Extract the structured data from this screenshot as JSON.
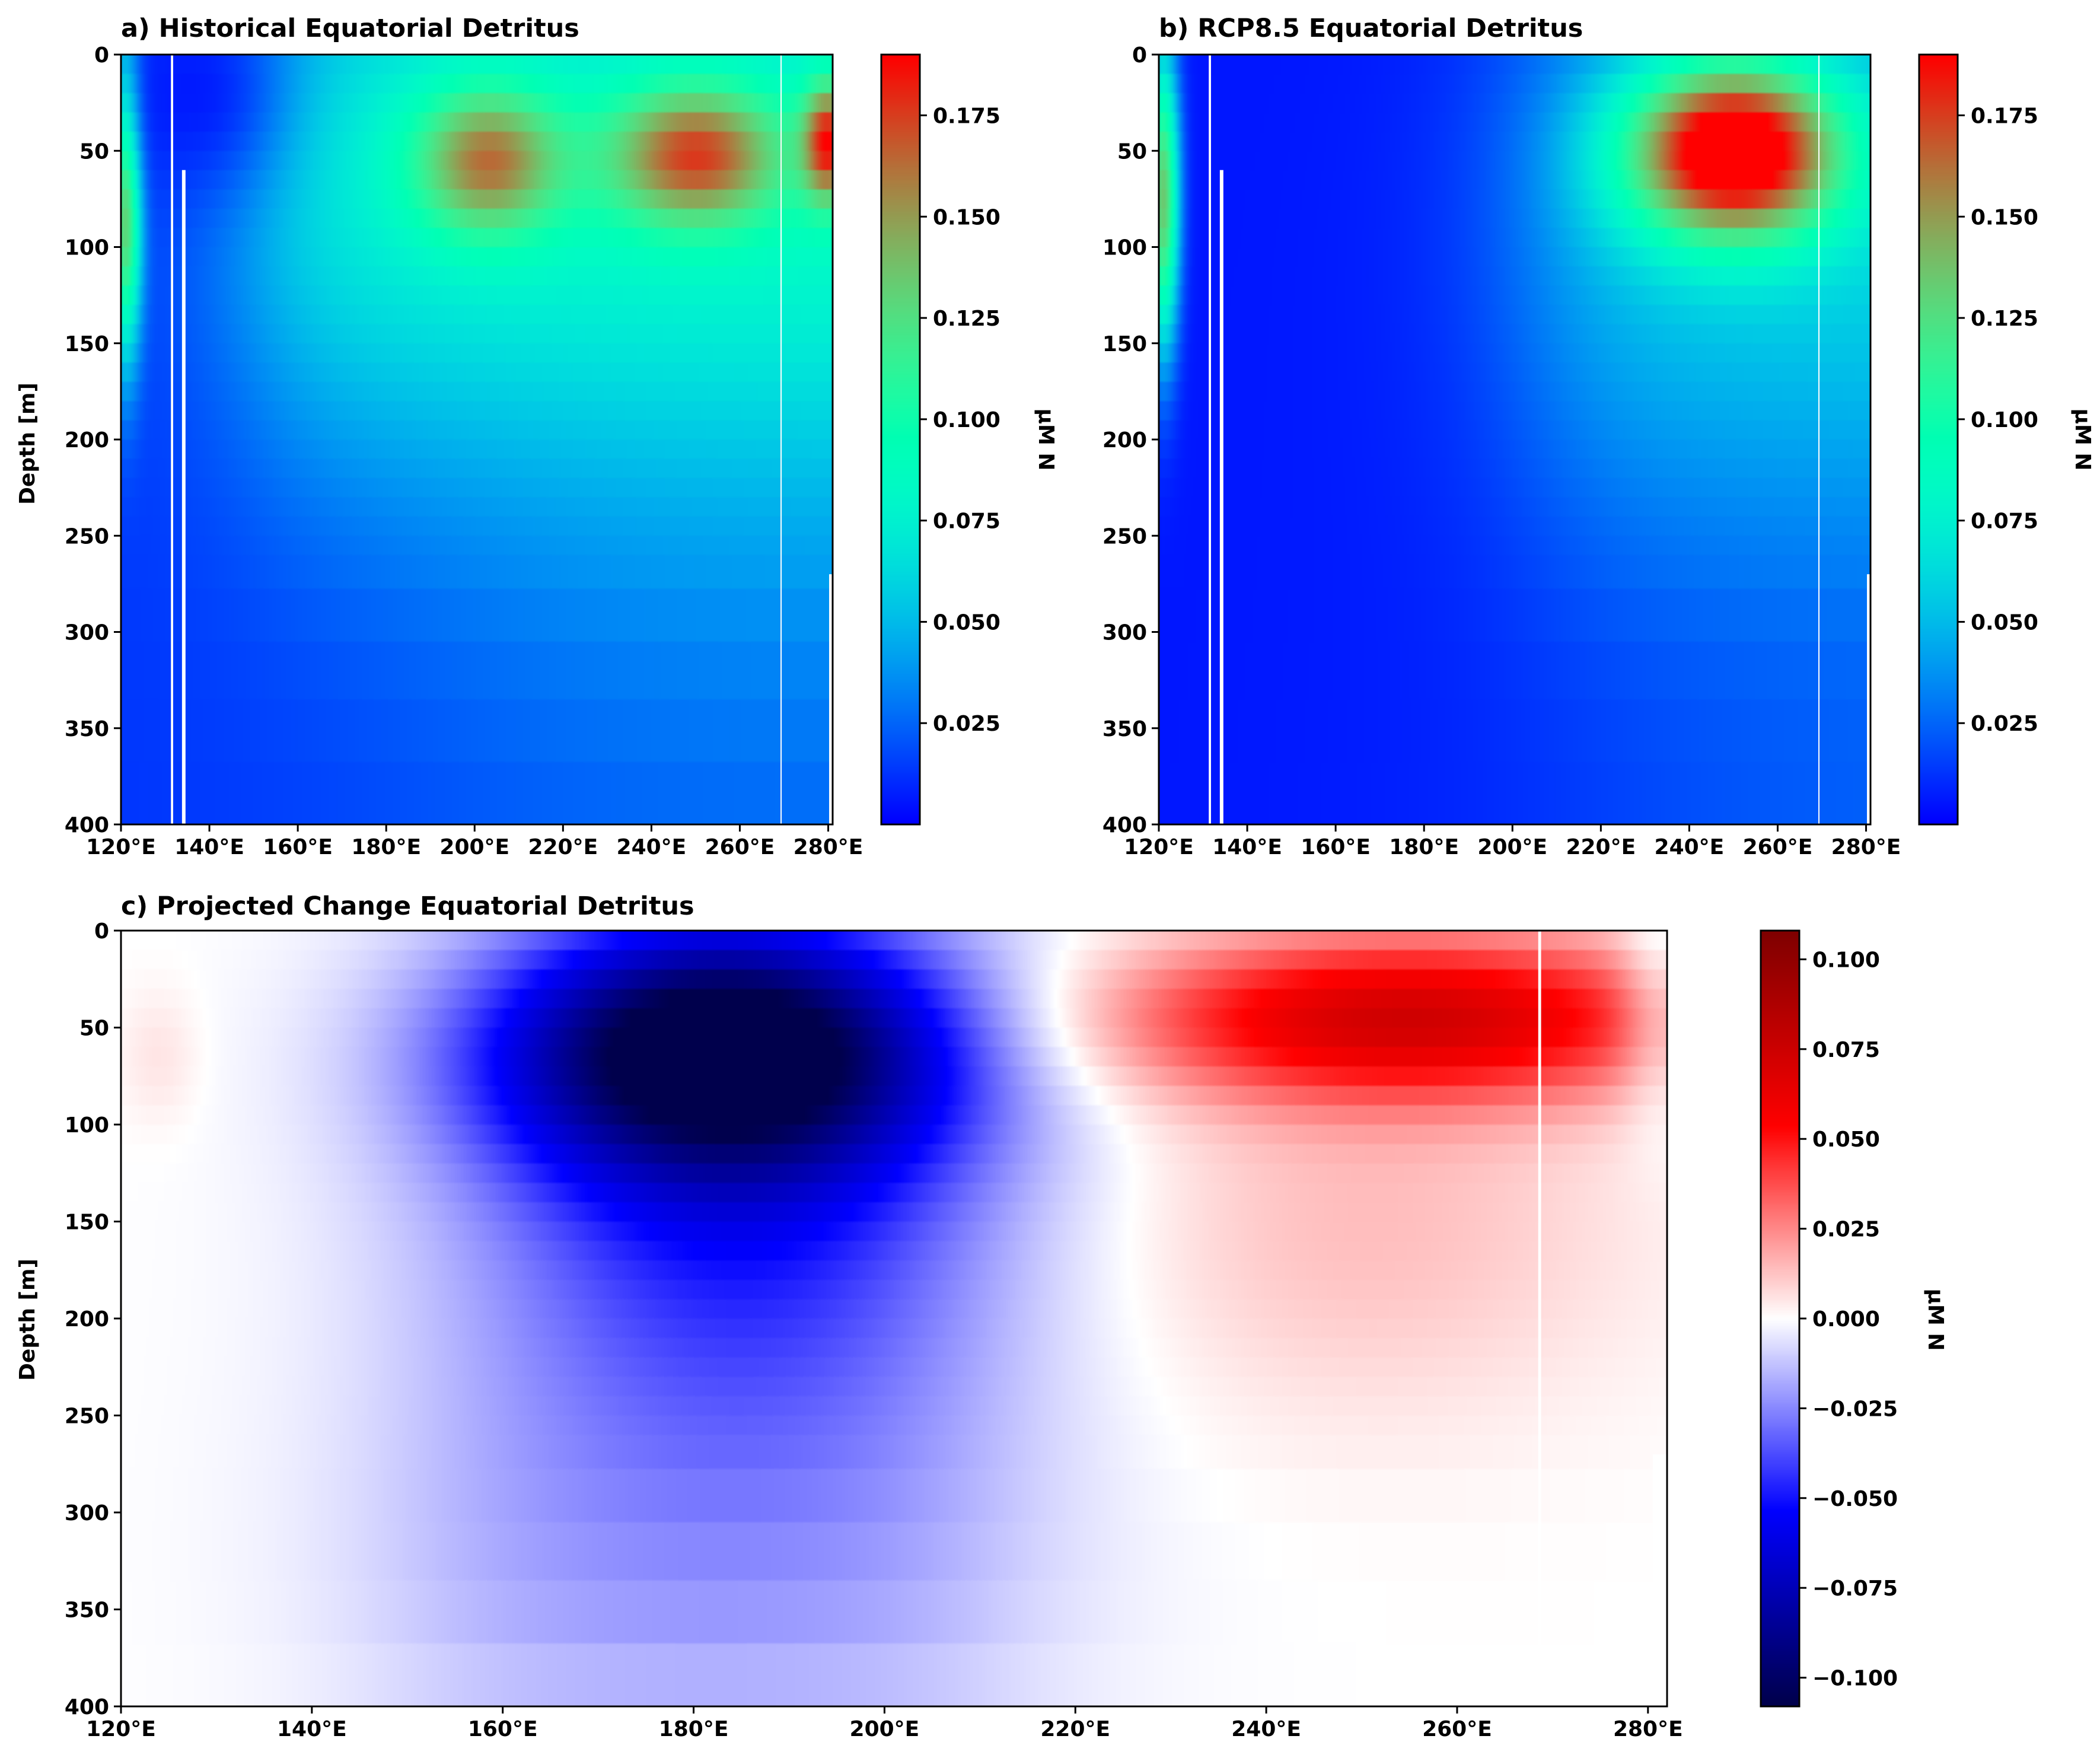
{
  "chart_data": [
    {
      "id": "a",
      "type": "heatmap",
      "title": "a) Historical Equatorial Detritus",
      "xlabel": "",
      "ylabel": "Depth [m]",
      "xlim": [
        120,
        281
      ],
      "ylim": [
        400,
        0
      ],
      "xticks": [
        120,
        140,
        160,
        180,
        200,
        220,
        240,
        260,
        280
      ],
      "xtick_labels": [
        "120°E",
        "140°E",
        "160°E",
        "180°E",
        "200°E",
        "220°E",
        "240°E",
        "260°E",
        "280°E"
      ],
      "yticks": [
        0,
        50,
        100,
        150,
        200,
        250,
        300,
        350,
        400
      ],
      "ytick_labels": [
        "0",
        "50",
        "100",
        "150",
        "200",
        "250",
        "300",
        "350",
        "400"
      ],
      "colormap": "rainbow",
      "colorbar": {
        "label": "μM N",
        "range": [
          0.0,
          0.19
        ],
        "ticks": [
          0.025,
          0.05,
          0.075,
          0.1,
          0.125,
          0.15,
          0.175
        ],
        "tick_labels": [
          "0.025",
          "0.050",
          "0.075",
          "0.100",
          "0.125",
          "0.150",
          "0.175"
        ]
      },
      "depth_levels": [
        5,
        15,
        25,
        35,
        45,
        55,
        65,
        75,
        85,
        95,
        105,
        115,
        125,
        135,
        145,
        155,
        165,
        175,
        185,
        195,
        205,
        215,
        225,
        235,
        245,
        255,
        265,
        290,
        320,
        350,
        385
      ],
      "features": [
        {
          "description": "subsurface maximum",
          "lon": 203,
          "depth": 55,
          "value": 0.155
        },
        {
          "description": "subsurface maximum",
          "lon": 250,
          "depth": 52,
          "value": 0.165
        },
        {
          "description": "subsurface maximum",
          "lon": 280,
          "depth": 45,
          "value": 0.17
        },
        {
          "description": "western boundary maximum",
          "lon": 121,
          "depth": 75,
          "value": 0.16
        },
        {
          "description": "western warm pool surface minimum",
          "lon": 138,
          "depth": 20,
          "value": 0.01
        },
        {
          "description": "deep eastern values",
          "lon": 270,
          "depth": 380,
          "value": 0.025
        }
      ]
    },
    {
      "id": "b",
      "type": "heatmap",
      "title": "b) RCP8.5 Equatorial Detritus",
      "xlabel": "",
      "ylabel": "",
      "xlim": [
        120,
        281
      ],
      "ylim": [
        400,
        0
      ],
      "xticks": [
        120,
        140,
        160,
        180,
        200,
        220,
        240,
        260,
        280
      ],
      "xtick_labels": [
        "120°E",
        "140°E",
        "160°E",
        "180°E",
        "200°E",
        "220°E",
        "240°E",
        "260°E",
        "280°E"
      ],
      "yticks": [
        0,
        50,
        100,
        150,
        200,
        250,
        300,
        350,
        400
      ],
      "ytick_labels": [
        "0",
        "50",
        "100",
        "150",
        "200",
        "250",
        "300",
        "350",
        "400"
      ],
      "colormap": "rainbow",
      "colorbar": {
        "label": "μM N",
        "range": [
          0.0,
          0.19
        ],
        "ticks": [
          0.025,
          0.05,
          0.075,
          0.1,
          0.125,
          0.15,
          0.175
        ],
        "tick_labels": [
          "0.025",
          "0.050",
          "0.075",
          "0.100",
          "0.125",
          "0.150",
          "0.175"
        ]
      },
      "depth_levels": [
        5,
        15,
        25,
        35,
        45,
        55,
        65,
        75,
        85,
        95,
        105,
        115,
        125,
        135,
        145,
        155,
        165,
        175,
        185,
        195,
        205,
        215,
        225,
        235,
        245,
        255,
        265,
        290,
        320,
        350,
        385
      ],
      "features": [
        {
          "description": "subsurface maximum",
          "lon": 250,
          "depth": 50,
          "value": 0.2
        },
        {
          "description": "western boundary maximum",
          "lon": 121,
          "depth": 75,
          "value": 0.15
        },
        {
          "description": "central Pacific minimum",
          "lon": 170,
          "depth": 200,
          "value": 0.005
        },
        {
          "description": "deep eastern values",
          "lon": 270,
          "depth": 380,
          "value": 0.025
        }
      ]
    },
    {
      "id": "c",
      "type": "heatmap",
      "title": "c) Projected Change Equatorial Detritus",
      "xlabel": "",
      "ylabel": "Depth [m]",
      "xlim": [
        120,
        282
      ],
      "ylim": [
        400,
        0
      ],
      "xticks": [
        120,
        140,
        160,
        180,
        200,
        220,
        240,
        260,
        280
      ],
      "xtick_labels": [
        "120°E",
        "140°E",
        "160°E",
        "180°E",
        "200°E",
        "220°E",
        "240°E",
        "260°E",
        "280°E"
      ],
      "yticks": [
        0,
        50,
        100,
        150,
        200,
        250,
        300,
        350,
        400
      ],
      "ytick_labels": [
        "0",
        "50",
        "100",
        "150",
        "200",
        "250",
        "300",
        "350",
        "400"
      ],
      "colormap": "seismic",
      "colorbar": {
        "label": "μM N",
        "range": [
          -0.108,
          0.108
        ],
        "ticks": [
          -0.1,
          -0.075,
          -0.05,
          -0.025,
          0.0,
          0.025,
          0.05,
          0.075,
          0.1
        ],
        "tick_labels": [
          "−0.100",
          "−0.075",
          "−0.050",
          "−0.025",
          "0.000",
          "0.025",
          "0.050",
          "0.075",
          "0.100"
        ]
      },
      "depth_levels": [
        5,
        15,
        25,
        35,
        45,
        55,
        65,
        75,
        85,
        95,
        105,
        115,
        125,
        135,
        145,
        155,
        165,
        175,
        185,
        195,
        205,
        215,
        225,
        235,
        245,
        255,
        265,
        290,
        320,
        350,
        385
      ],
      "features": [
        {
          "description": "strongest decrease",
          "lon": 183,
          "depth": 60,
          "value": -0.105
        },
        {
          "description": "strongest increase",
          "lon": 255,
          "depth": 45,
          "value": 0.07
        },
        {
          "description": "weak increase near western boundary",
          "lon": 124,
          "depth": 65,
          "value": 0.006
        },
        {
          "description": "deep central decrease",
          "lon": 190,
          "depth": 350,
          "value": -0.02
        }
      ]
    }
  ]
}
